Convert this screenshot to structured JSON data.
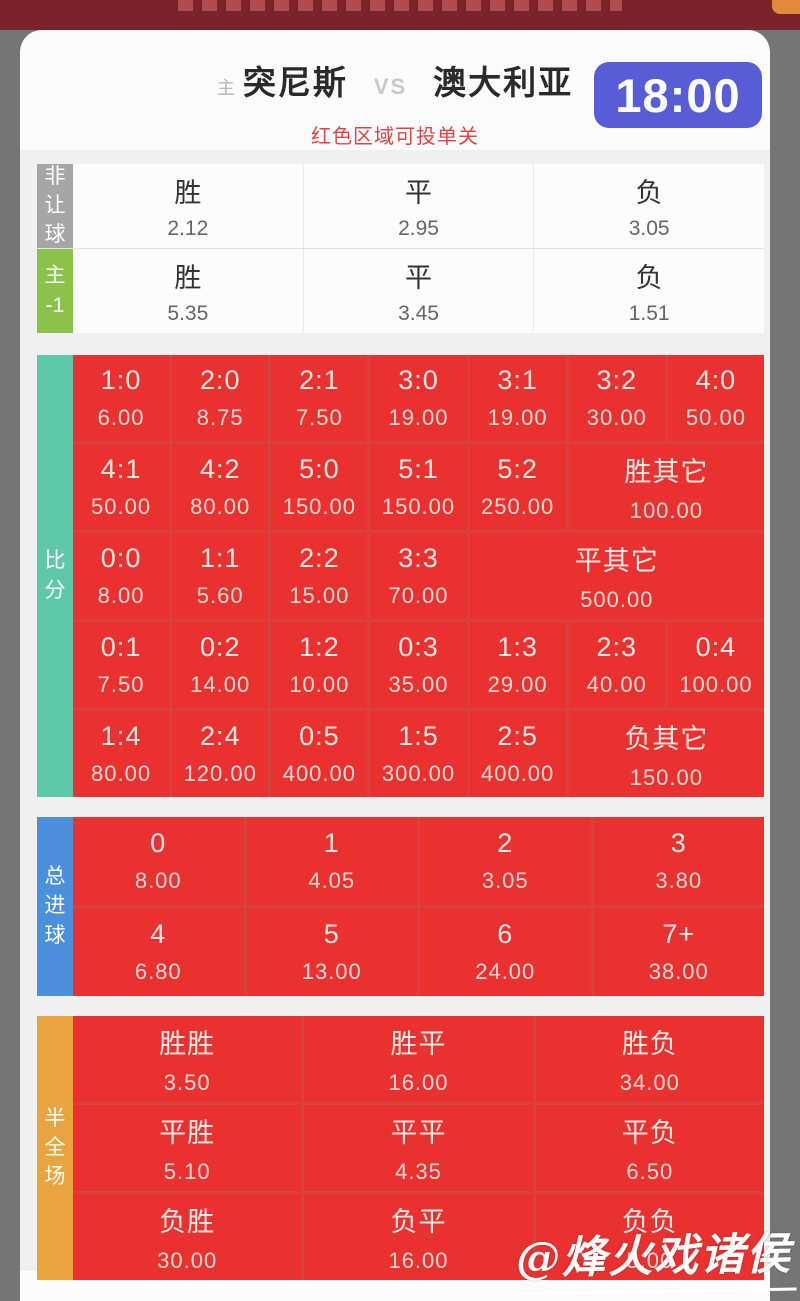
{
  "header": {
    "home_tag": "主",
    "home_team": "突尼斯",
    "vs": "VS",
    "away_team": "澳大利亚",
    "kickoff_time": "18:00",
    "notice": "红色区域可投单关"
  },
  "colors": {
    "cell_red": "#e93230",
    "grid_divider_red": "#d8423c",
    "badge_blue": "#575dd6",
    "notice_red": "#e04545",
    "label_gray": "#a6a6a6",
    "label_green": "#8bc34a",
    "label_teal": "#5ec8a8",
    "label_blue": "#4a90dc",
    "label_orange": "#e9a440",
    "banner_maroon": "#7b232b"
  },
  "market_1x2": {
    "rows": [
      {
        "label_lines": [
          "非",
          "让",
          "球"
        ],
        "label_color": "#a6a6a6",
        "cells": [
          {
            "t": "胜",
            "o": "2.12"
          },
          {
            "t": "平",
            "o": "2.95"
          },
          {
            "t": "负",
            "o": "3.05"
          }
        ]
      },
      {
        "label_lines": [
          "主",
          "-1"
        ],
        "label_color": "#8bc34a",
        "cells": [
          {
            "t": "胜",
            "o": "5.35"
          },
          {
            "t": "平",
            "o": "3.45"
          },
          {
            "t": "负",
            "o": "1.51"
          }
        ]
      }
    ]
  },
  "score_section": {
    "label_lines": [
      "比",
      "分"
    ],
    "label_color": "#5ec8a8",
    "columns": 7,
    "rows": [
      [
        {
          "t": "1:0",
          "o": "6.00"
        },
        {
          "t": "2:0",
          "o": "8.75"
        },
        {
          "t": "2:1",
          "o": "7.50"
        },
        {
          "t": "3:0",
          "o": "19.00"
        },
        {
          "t": "3:1",
          "o": "19.00"
        },
        {
          "t": "3:2",
          "o": "30.00"
        },
        {
          "t": "4:0",
          "o": "50.00"
        }
      ],
      [
        {
          "t": "4:1",
          "o": "50.00"
        },
        {
          "t": "4:2",
          "o": "80.00"
        },
        {
          "t": "5:0",
          "o": "150.00"
        },
        {
          "t": "5:1",
          "o": "150.00"
        },
        {
          "t": "5:2",
          "o": "250.00"
        },
        {
          "t": "胜其它",
          "o": "100.00",
          "span": 2
        }
      ],
      [
        {
          "t": "0:0",
          "o": "8.00"
        },
        {
          "t": "1:1",
          "o": "5.60"
        },
        {
          "t": "2:2",
          "o": "15.00"
        },
        {
          "t": "3:3",
          "o": "70.00"
        },
        {
          "t": "平其它",
          "o": "500.00",
          "span": 3
        }
      ],
      [
        {
          "t": "0:1",
          "o": "7.50"
        },
        {
          "t": "0:2",
          "o": "14.00"
        },
        {
          "t": "1:2",
          "o": "10.00"
        },
        {
          "t": "0:3",
          "o": "35.00"
        },
        {
          "t": "1:3",
          "o": "29.00"
        },
        {
          "t": "2:3",
          "o": "40.00"
        },
        {
          "t": "0:4",
          "o": "100.00"
        }
      ],
      [
        {
          "t": "1:4",
          "o": "80.00"
        },
        {
          "t": "2:4",
          "o": "120.00"
        },
        {
          "t": "0:5",
          "o": "400.00"
        },
        {
          "t": "1:5",
          "o": "300.00"
        },
        {
          "t": "2:5",
          "o": "400.00"
        },
        {
          "t": "负其它",
          "o": "150.00",
          "span": 2
        }
      ]
    ]
  },
  "total_goals": {
    "label_lines": [
      "总",
      "进",
      "球"
    ],
    "label_color": "#4a90dc",
    "columns": 4,
    "rows": [
      [
        {
          "t": "0",
          "o": "8.00"
        },
        {
          "t": "1",
          "o": "4.05"
        },
        {
          "t": "2",
          "o": "3.05"
        },
        {
          "t": "3",
          "o": "3.80"
        }
      ],
      [
        {
          "t": "4",
          "o": "6.80"
        },
        {
          "t": "5",
          "o": "13.00"
        },
        {
          "t": "6",
          "o": "24.00"
        },
        {
          "t": "7+",
          "o": "38.00"
        }
      ]
    ]
  },
  "half_full": {
    "label_lines": [
      "半",
      "全",
      "场"
    ],
    "label_color": "#e9a440",
    "columns": 3,
    "rows": [
      [
        {
          "t": "胜胜",
          "o": "3.50"
        },
        {
          "t": "胜平",
          "o": "16.00"
        },
        {
          "t": "胜负",
          "o": "34.00"
        }
      ],
      [
        {
          "t": "平胜",
          "o": "5.10"
        },
        {
          "t": "平平",
          "o": "4.35"
        },
        {
          "t": "平负",
          "o": "6.50"
        }
      ],
      [
        {
          "t": "负胜",
          "o": "30.00"
        },
        {
          "t": "负平",
          "o": "16.00"
        },
        {
          "t": "负负",
          "o": "5.00"
        }
      ]
    ]
  },
  "watermark": {
    "text": "@烽火戏诸侯"
  }
}
